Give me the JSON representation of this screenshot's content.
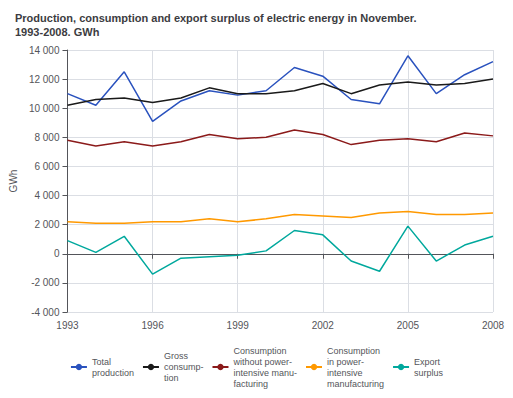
{
  "chart_data": {
    "type": "line",
    "title": "Production, consumption and export surplus of electric energy in November.\n1993-2008. GWh",
    "ylabel": "GWh",
    "x": [
      1993,
      1994,
      1995,
      1996,
      1997,
      1998,
      1999,
      2000,
      2001,
      2002,
      2003,
      2004,
      2005,
      2006,
      2007,
      2008
    ],
    "series": [
      {
        "name": "Total\nproduction",
        "color": "#2a52be",
        "values": [
          11000,
          10200,
          12500,
          9100,
          10500,
          11200,
          10900,
          11200,
          12800,
          12200,
          10600,
          10300,
          13600,
          11000,
          12300,
          13200
        ]
      },
      {
        "name": "Gross\nconsump-\ntion",
        "color": "#1a1a1a",
        "values": [
          10200,
          10600,
          10700,
          10400,
          10700,
          11400,
          11000,
          11000,
          11200,
          11700,
          11000,
          11600,
          11800,
          11600,
          11700,
          12000
        ]
      },
      {
        "name": "Consumption\nwithout power-\nintensive manu-\nfacturing",
        "color": "#8b1a1a",
        "values": [
          7800,
          7400,
          7700,
          7400,
          7700,
          8200,
          7900,
          8000,
          8500,
          8200,
          7500,
          7800,
          7900,
          7700,
          8300,
          8100
        ]
      },
      {
        "name": "Consumption\nin power-\nintensive\nmanufacturing",
        "color": "#ff9900",
        "values": [
          2200,
          2100,
          2100,
          2200,
          2200,
          2400,
          2200,
          2400,
          2700,
          2600,
          2500,
          2800,
          2900,
          2700,
          2700,
          2800
        ]
      },
      {
        "name": "Export\nsurplus",
        "color": "#00a89d",
        "values": [
          900,
          100,
          1200,
          -1400,
          -300,
          -200,
          -100,
          200,
          1600,
          1300,
          -500,
          -1200,
          1900,
          -500,
          600,
          1200
        ]
      }
    ],
    "xlim": [
      1993,
      2008
    ],
    "xticks": [
      1993,
      1996,
      1999,
      2002,
      2005,
      2008
    ],
    "ylim": [
      -4000,
      14000
    ],
    "yticks": [
      {
        "value": -4000,
        "label": "-4 000"
      },
      {
        "value": -2000,
        "label": "-2 000"
      },
      0,
      {
        "value": 2000,
        "label": "2 000"
      },
      {
        "value": 4000,
        "label": "4 000"
      },
      {
        "value": 6000,
        "label": "6 000"
      },
      {
        "value": 8000,
        "label": "8 000"
      },
      {
        "value": 10000,
        "label": "10 000"
      },
      {
        "value": 12000,
        "label": "12 000"
      },
      {
        "value": 14000,
        "label": "14 000"
      }
    ],
    "grid": true,
    "legend": "bottom"
  }
}
